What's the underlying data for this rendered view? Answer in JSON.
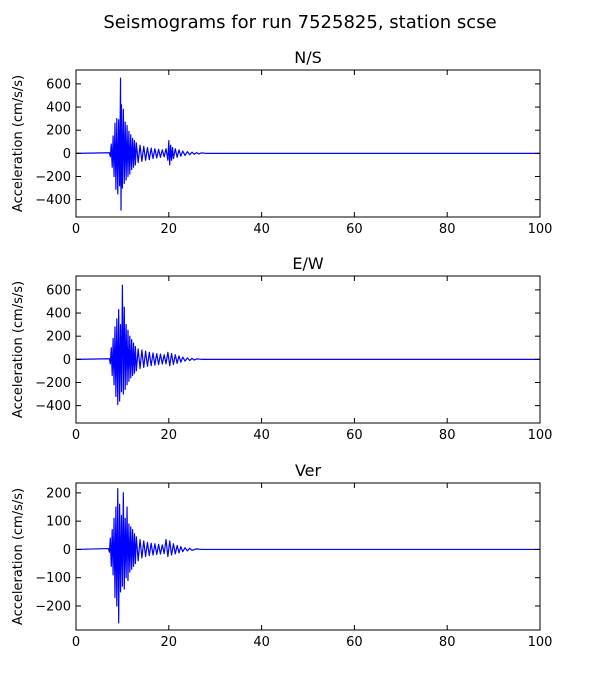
{
  "figure": {
    "suptitle": "Seismograms for run 7525825, station scse"
  },
  "chart_data": [
    {
      "type": "line",
      "title": "N/S",
      "xlabel": "",
      "ylabel": "Acceleration (cm/s/s)",
      "xlim": [
        0,
        100
      ],
      "ylim": [
        -550,
        720
      ],
      "xticks": [
        0,
        20,
        40,
        60,
        80,
        100
      ],
      "yticks": [
        -400,
        -200,
        0,
        200,
        400,
        600
      ],
      "line_color": "#0000ff",
      "grid": false,
      "series": [
        {
          "x": [
            0,
            7.2,
            7.4,
            7.6,
            7.8,
            8.0,
            8.2,
            8.4,
            8.6,
            8.8,
            9.0,
            9.2,
            9.4,
            9.6,
            9.7,
            9.8,
            10.0,
            10.2,
            10.4,
            10.6,
            10.8,
            11.0,
            11.2,
            11.4,
            11.6,
            11.8,
            12.0,
            12.2,
            12.4,
            12.6,
            12.8,
            13.0,
            13.4,
            13.8,
            14.2,
            14.6,
            15.0,
            15.4,
            15.8,
            16.2,
            16.6,
            17.0,
            17.4,
            17.8,
            18.2,
            18.6,
            19.0,
            19.4,
            19.8,
            20.0,
            20.2,
            20.4,
            20.6,
            20.8,
            21.0,
            21.4,
            21.8,
            22.2,
            22.6,
            23.0,
            23.5,
            24.0,
            24.5,
            25.0,
            25.5,
            26.0,
            26.5,
            27.0,
            28.0,
            100
          ],
          "y": [
            0,
            5,
            -30,
            80,
            -120,
            150,
            -200,
            260,
            -310,
            300,
            -350,
            290,
            -280,
            650,
            -490,
            420,
            -300,
            380,
            -260,
            270,
            -230,
            240,
            -200,
            190,
            -180,
            160,
            -140,
            130,
            -120,
            110,
            -100,
            90,
            -80,
            70,
            -70,
            60,
            -60,
            50,
            -55,
            45,
            -45,
            40,
            -40,
            35,
            -35,
            30,
            -30,
            40,
            -60,
            110,
            -100,
            70,
            -60,
            50,
            -45,
            40,
            -35,
            30,
            -25,
            20,
            -18,
            15,
            -12,
            10,
            -8,
            6,
            -5,
            4,
            0,
            0
          ]
        }
      ]
    },
    {
      "type": "line",
      "title": "E/W",
      "xlabel": "",
      "ylabel": "Acceleration (cm/s/s)",
      "xlim": [
        0,
        100
      ],
      "ylim": [
        -550,
        720
      ],
      "xticks": [
        0,
        20,
        40,
        60,
        80,
        100
      ],
      "yticks": [
        -400,
        -200,
        0,
        200,
        400,
        600
      ],
      "line_color": "#0000ff",
      "grid": false,
      "series": [
        {
          "x": [
            0,
            7.2,
            7.4,
            7.6,
            7.8,
            8.0,
            8.2,
            8.4,
            8.6,
            8.8,
            9.0,
            9.2,
            9.4,
            9.6,
            9.8,
            10.0,
            10.2,
            10.4,
            10.6,
            10.8,
            11.0,
            11.2,
            11.4,
            11.6,
            11.8,
            12.0,
            12.2,
            12.4,
            12.6,
            12.8,
            13.0,
            13.4,
            13.8,
            14.2,
            14.6,
            15.0,
            15.4,
            15.8,
            16.2,
            16.6,
            17.0,
            17.4,
            17.8,
            18.2,
            18.6,
            19.0,
            19.4,
            19.8,
            20.2,
            20.6,
            21.0,
            21.4,
            21.8,
            22.2,
            22.6,
            23.0,
            23.5,
            24.0,
            24.5,
            25.0,
            25.5,
            26.0,
            27.0,
            100
          ],
          "y": [
            0,
            5,
            -40,
            100,
            -140,
            180,
            -220,
            280,
            -320,
            350,
            -390,
            430,
            -360,
            300,
            -280,
            640,
            -300,
            450,
            -260,
            300,
            -220,
            250,
            -190,
            200,
            -160,
            170,
            -140,
            140,
            -120,
            110,
            -100,
            90,
            -80,
            80,
            -70,
            70,
            -60,
            60,
            -55,
            55,
            -50,
            50,
            -45,
            45,
            -40,
            40,
            -38,
            60,
            -55,
            50,
            -45,
            40,
            -35,
            30,
            -25,
            20,
            -15,
            12,
            -10,
            8,
            -6,
            4,
            0,
            0
          ]
        }
      ]
    },
    {
      "type": "line",
      "title": "Ver",
      "xlabel": "",
      "ylabel": "Acceleration (cm/s/s)",
      "xlim": [
        0,
        100
      ],
      "ylim": [
        -285,
        235
      ],
      "xticks": [
        0,
        20,
        40,
        60,
        80,
        100
      ],
      "yticks": [
        -200,
        -100,
        0,
        100,
        200
      ],
      "line_color": "#0000ff",
      "grid": false,
      "series": [
        {
          "x": [
            0,
            7.0,
            7.2,
            7.4,
            7.6,
            7.8,
            8.0,
            8.2,
            8.4,
            8.6,
            8.8,
            9.0,
            9.2,
            9.4,
            9.6,
            9.8,
            10.0,
            10.2,
            10.4,
            10.6,
            10.8,
            11.0,
            11.2,
            11.4,
            11.6,
            11.8,
            12.0,
            12.2,
            12.4,
            12.6,
            12.8,
            13.0,
            13.4,
            13.8,
            14.2,
            14.6,
            15.0,
            15.4,
            15.8,
            16.2,
            16.6,
            17.0,
            17.4,
            17.8,
            18.2,
            18.6,
            19.0,
            19.4,
            19.8,
            20.2,
            20.6,
            21.0,
            21.4,
            21.8,
            22.2,
            22.6,
            23.0,
            23.5,
            24.0,
            24.5,
            25.0,
            26.0,
            27.0,
            100
          ],
          "y": [
            0,
            3,
            -10,
            40,
            -60,
            70,
            -90,
            110,
            -170,
            150,
            -200,
            215,
            -260,
            160,
            -150,
            120,
            -130,
            200,
            -140,
            110,
            -100,
            150,
            -110,
            90,
            -80,
            80,
            -70,
            70,
            -60,
            55,
            -50,
            45,
            -40,
            35,
            -30,
            30,
            -25,
            25,
            -22,
            22,
            -20,
            20,
            -18,
            18,
            -16,
            16,
            -15,
            35,
            -25,
            30,
            -20,
            20,
            -16,
            14,
            -12,
            10,
            -8,
            6,
            -5,
            4,
            -3,
            2,
            0,
            0
          ]
        }
      ]
    }
  ]
}
